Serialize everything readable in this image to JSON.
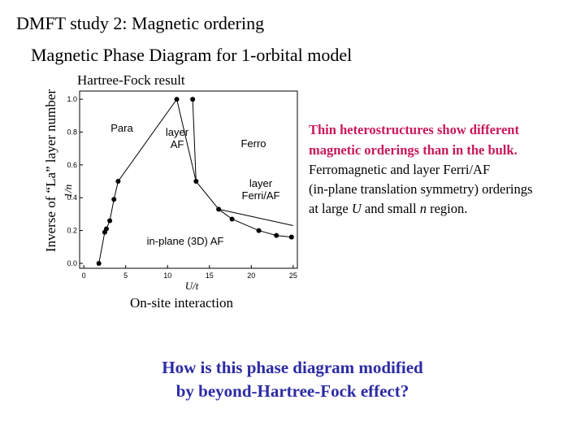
{
  "header": {
    "title": "DMFT study 2: Magnetic ordering",
    "subtitle": "Magnetic Phase Diagram for 1-orbital model"
  },
  "side_label": "Inverse of “La” layer number",
  "plot_caption": "Hartree-Fock result",
  "x_caption": "On-site interaction",
  "notes": {
    "bold_lines": [
      "Thin heterostructures show different",
      "magnetic orderings than in the bulk."
    ],
    "plain_lines": [
      "Ferromagnetic and layer Ferri/AF",
      "(in-plane translation symmetry) orderings"
    ],
    "last_line": [
      "at large ",
      "U",
      " and small ",
      "n",
      " region."
    ]
  },
  "question": [
    "How is this phase diagram modified",
    "by beyond-Hartree-Fock effect?"
  ],
  "chart_data": {
    "type": "line",
    "xlabel": "U/t",
    "ylabel": "1/n",
    "xlim": [
      -0.5,
      25.5
    ],
    "ylim": [
      -0.03,
      1.05
    ],
    "xticks": [
      0,
      5,
      10,
      15,
      20,
      25
    ],
    "yticks": [
      {
        "value": 0,
        "label": "0.0"
      },
      0.2,
      0.4,
      0.6,
      0.8,
      {
        "value": 1,
        "label": "1.0"
      }
    ],
    "annotations": [
      [
        "Para"
      ],
      [
        "layer",
        "AF"
      ],
      [
        "Ferro"
      ],
      [
        "layer",
        "Ferri/AF"
      ],
      [
        "in-plane (3D) AF"
      ]
    ],
    "series": [
      {
        "color": "#000000",
        "marker": true,
        "x": [
          1.8,
          2.5,
          2.7,
          3.1,
          3.6,
          4.1,
          11.1
        ],
        "values": [
          0,
          0.19,
          0.21,
          0.26,
          0.39,
          0.5,
          1.0
        ]
      },
      {
        "color": "#000000",
        "marker": true,
        "x": [
          13.0,
          13.4,
          16.1,
          17.7,
          20.9,
          23.0,
          24.8
        ],
        "values": [
          1.0,
          0.5,
          0.33,
          0.27,
          0.2,
          0.17,
          0.16
        ]
      },
      {
        "color": "#000000",
        "marker": false,
        "x": [
          11.1,
          13.4
        ],
        "values": [
          1.0,
          0.5
        ]
      },
      {
        "color": "#000000",
        "marker": false,
        "x": [
          16.1,
          25
        ],
        "values": [
          0.33,
          0.23
        ]
      }
    ]
  }
}
